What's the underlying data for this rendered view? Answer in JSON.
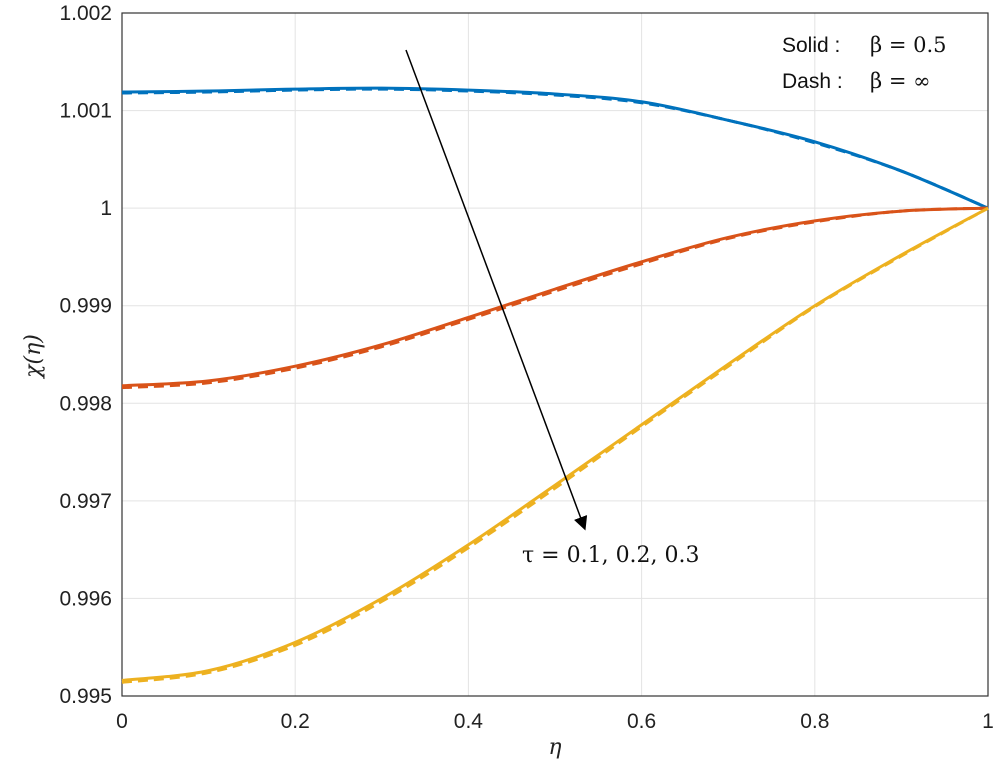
{
  "chart_data": {
    "type": "line",
    "xlabel": "η",
    "ylabel": "χ(η)",
    "xlim": [
      0,
      1
    ],
    "ylim": [
      0.995,
      1.002
    ],
    "xticks": [
      "0",
      "0.2",
      "0.4",
      "0.6",
      "0.8",
      "1"
    ],
    "yticks": [
      "0.995",
      "0.996",
      "0.997",
      "0.998",
      "0.999",
      "1",
      "1.001",
      "1.002"
    ],
    "grid": true,
    "legend": {
      "position": "top-right",
      "solid_label": "Solid :",
      "solid_value": "β = 0.5",
      "dash_label": "Dash :",
      "dash_value": "β = ∞"
    },
    "annotation": {
      "text": "τ = 0.1, 0.2, 0.3",
      "arrow": "pointing down-right"
    },
    "colors": {
      "tau_0_1": "#0072BD",
      "tau_0_2": "#D95319",
      "tau_0_3": "#EDB120"
    },
    "series": [
      {
        "color": "#0072BD",
        "style": "solid",
        "x": [
          0,
          0.1,
          0.2,
          0.3,
          0.4,
          0.5,
          0.6,
          0.7,
          0.8,
          0.9,
          1.0
        ],
        "y": [
          1.00119,
          1.0012,
          1.00122,
          1.00123,
          1.00121,
          1.00117,
          1.00109,
          1.0009,
          1.00068,
          1.00038,
          1.0
        ]
      },
      {
        "color": "#0072BD",
        "style": "dashed",
        "x": [
          0,
          0.1,
          0.2,
          0.3,
          0.4,
          0.5,
          0.6,
          0.7,
          0.8,
          0.9,
          1.0
        ],
        "y": [
          1.00118,
          1.00119,
          1.00121,
          1.00122,
          1.0012,
          1.00116,
          1.00108,
          1.0009,
          1.00067,
          1.00038,
          1.0
        ]
      },
      {
        "color": "#D95319",
        "style": "solid",
        "x": [
          0,
          0.1,
          0.2,
          0.3,
          0.4,
          0.5,
          0.6,
          0.7,
          0.8,
          0.9,
          1.0
        ],
        "y": [
          0.99818,
          0.99823,
          0.99838,
          0.9986,
          0.99888,
          0.99917,
          0.99945,
          0.9997,
          0.99987,
          0.99997,
          1.0
        ]
      },
      {
        "color": "#D95319",
        "style": "dashed",
        "x": [
          0,
          0.1,
          0.2,
          0.3,
          0.4,
          0.5,
          0.6,
          0.7,
          0.8,
          0.9,
          1.0
        ],
        "y": [
          0.99816,
          0.99821,
          0.99836,
          0.99858,
          0.99886,
          0.99915,
          0.99943,
          0.99969,
          0.99986,
          0.99997,
          1.0
        ]
      },
      {
        "color": "#EDB120",
        "style": "solid",
        "x": [
          0,
          0.1,
          0.2,
          0.3,
          0.4,
          0.5,
          0.6,
          0.7,
          0.8,
          0.9,
          1.0
        ],
        "y": [
          0.99516,
          0.99526,
          0.99555,
          0.996,
          0.99655,
          0.99716,
          0.99778,
          0.9984,
          0.999,
          0.99952,
          1.0
        ]
      },
      {
        "color": "#EDB120",
        "style": "dashed",
        "x": [
          0,
          0.1,
          0.2,
          0.3,
          0.4,
          0.5,
          0.6,
          0.7,
          0.8,
          0.9,
          1.0
        ],
        "y": [
          0.99514,
          0.99524,
          0.99552,
          0.99597,
          0.99652,
          0.99713,
          0.99776,
          0.99838,
          0.99899,
          0.99951,
          1.0
        ]
      }
    ]
  }
}
